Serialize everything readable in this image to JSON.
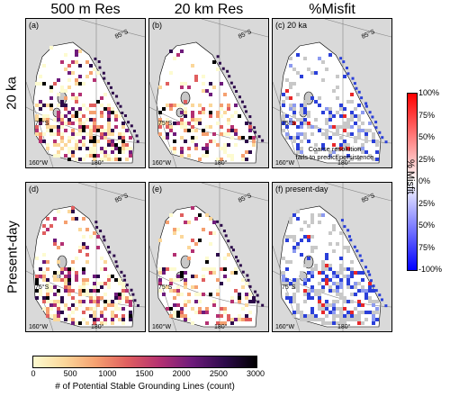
{
  "columns": {
    "res500": "500 m Res",
    "res20": "20 km Res",
    "misfit": "%Misfit"
  },
  "rows": {
    "r1": "20 ka",
    "r2": "Present-day"
  },
  "panels": {
    "a": "(a)",
    "b": "(b)",
    "c": "(c) 20 ka",
    "d": "(d)",
    "e": "(e)",
    "f": "(f) present-day"
  },
  "map_labels": {
    "lat85": "85°S",
    "lat75": "75°S",
    "lon160": "160°W",
    "lon180": "180°"
  },
  "annotation": {
    "line1": "Coarse resolution",
    "line2": "fails to predict persistence"
  },
  "count_colorbar": {
    "ticks": [
      "0",
      "500",
      "1000",
      "1500",
      "2000",
      "2500",
      "3000"
    ],
    "label": "# of Potential Stable Grounding Lines (count)",
    "colors": [
      "#fdfbd0",
      "#fbd79a",
      "#f5a070",
      "#e05f5f",
      "#b33072",
      "#6e1b7b",
      "#2c0a4a",
      "#000000"
    ]
  },
  "misfit_colorbar": {
    "ticks": [
      "100%",
      "75%",
      "50%",
      "25%",
      "0%",
      "25%",
      "50%",
      "75%",
      "-100%"
    ],
    "label": "% Misfit",
    "colors": [
      "#ff0000",
      "#ffffff",
      "#0000ff"
    ]
  }
}
